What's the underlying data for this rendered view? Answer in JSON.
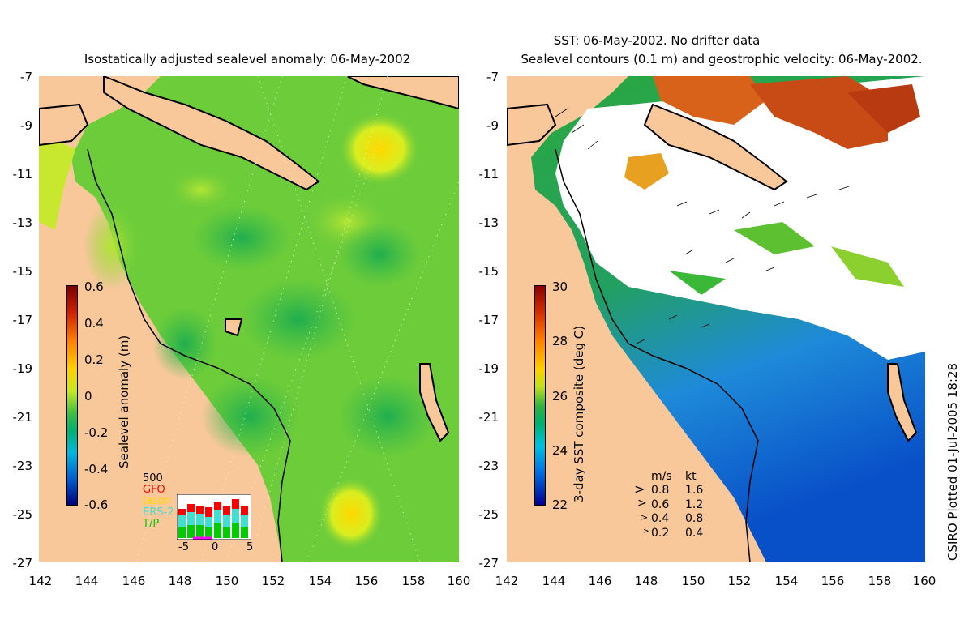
{
  "left_panel": {
    "title": "Isostatically adjusted sealevel anomaly: 06-May-2002",
    "y_ticks": [
      "-7",
      "-9",
      "-11",
      "-13",
      "-15",
      "-17",
      "-19",
      "-21",
      "-23",
      "-25",
      "-27"
    ],
    "x_ticks": [
      "142",
      "144",
      "146",
      "148",
      "150",
      "152",
      "154",
      "156",
      "158",
      "160"
    ],
    "colorbar": {
      "label": "Sealevel anomaly (m)",
      "ticks": [
        "0.6",
        "0.4",
        "0.2",
        "0",
        "-0.2",
        "-0.4",
        "-0.6"
      ],
      "range": [
        -0.6,
        0.6
      ]
    },
    "inset": {
      "top_value": "500",
      "legend": [
        {
          "label": "GFO",
          "color": "#ff0000"
        },
        {
          "label": "Jason",
          "color": "#ffd700"
        },
        {
          "label": "ERS-2",
          "color": "#40e0d0"
        },
        {
          "label": "T/P",
          "color": "#00cc00"
        }
      ],
      "x_ticks": [
        "-5",
        "0",
        "5"
      ]
    }
  },
  "right_panel": {
    "title_line1": "SST: 06-May-2002. No drifter data",
    "title_line2": "Sealevel contours (0.1 m) and geostrophic velocity: 06-May-2002.",
    "y_ticks": [
      "-7",
      "-9",
      "-11",
      "-13",
      "-15",
      "-17",
      "-19",
      "-21",
      "-23",
      "-25",
      "-27"
    ],
    "x_ticks": [
      "142",
      "144",
      "146",
      "148",
      "150",
      "152",
      "154",
      "156",
      "158",
      "160"
    ],
    "colorbar": {
      "label": "3-day SST composite (deg C)",
      "ticks": [
        "30",
        "28",
        "26",
        "24",
        "22"
      ],
      "range": [
        22,
        30
      ]
    },
    "velocity_legend": {
      "header_ms": "m/s",
      "header_kt": "kt",
      "rows": [
        {
          "ms": "0.8",
          "kt": "1.6"
        },
        {
          "ms": "0.6",
          "kt": "1.2"
        },
        {
          "ms": "0.4",
          "kt": "0.8"
        },
        {
          "ms": "0.2",
          "kt": "0.4"
        }
      ]
    }
  },
  "credit": "CSIRO Plotted 01-Jul-2005 18:28",
  "colors": {
    "land": "#f8c89a",
    "sea_green": "#55c23c",
    "sea_yellow_green": "#b8e832"
  }
}
